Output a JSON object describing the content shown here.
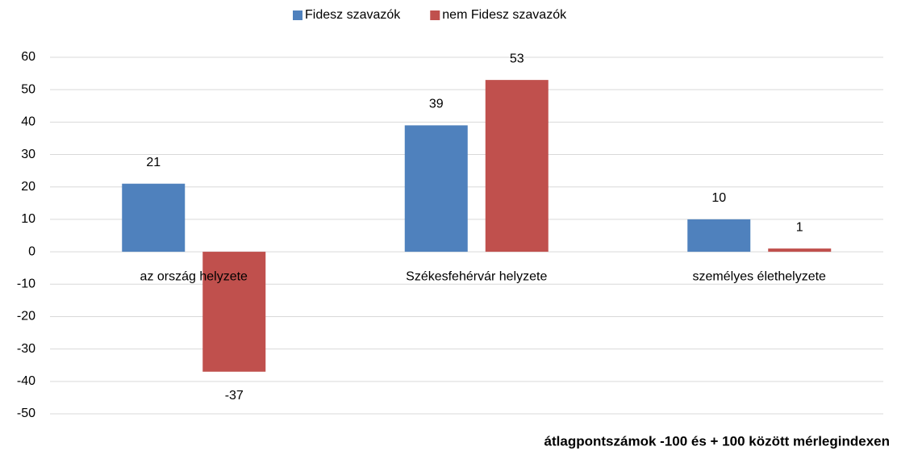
{
  "chart_data": {
    "type": "bar",
    "categories": [
      "az ország helyzete",
      "Székesfehérvár helyzete",
      "személyes élethelyzete"
    ],
    "series": [
      {
        "name": "Fidesz szavazók",
        "color": "#4f81bd",
        "values": [
          21,
          39,
          10
        ]
      },
      {
        "name": "nem Fidesz szavazók",
        "color": "#c0504d",
        "values": [
          -37,
          53,
          1
        ]
      }
    ],
    "ylim": [
      -50,
      60
    ],
    "yticks": [
      -50,
      -40,
      -30,
      -20,
      -10,
      0,
      10,
      20,
      30,
      40,
      50,
      60
    ],
    "grid": true,
    "legend": "top",
    "annotation": "átlagpontszámok -100 és + 100 között mérlegindexen"
  }
}
